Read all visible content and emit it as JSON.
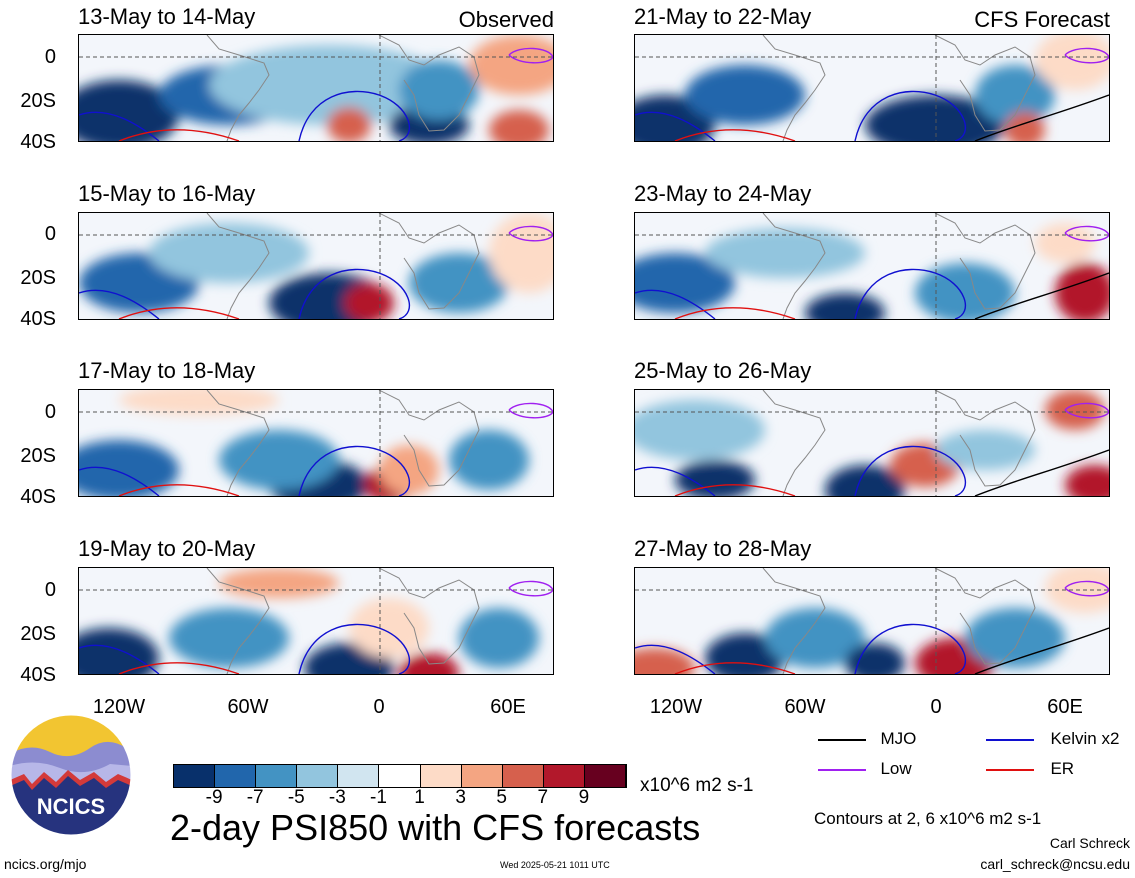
{
  "left_column_tag": "Observed",
  "right_column_tag": "CFS Forecast",
  "panels_left": [
    {
      "title": "13-May to 14-May"
    },
    {
      "title": "15-May to 16-May"
    },
    {
      "title": "17-May to 18-May"
    },
    {
      "title": "19-May to 20-May"
    }
  ],
  "panels_right": [
    {
      "title": "21-May to 22-May"
    },
    {
      "title": "23-May to 24-May"
    },
    {
      "title": "25-May to 26-May"
    },
    {
      "title": "27-May to 28-May"
    }
  ],
  "y_ticks": [
    "0",
    "20S",
    "40S"
  ],
  "x_ticks": [
    "120W",
    "60W",
    "0",
    "60E"
  ],
  "legend": {
    "mjo": "MJO",
    "kelvin": "Kelvin x2",
    "low": "Low",
    "er": "ER",
    "colors": {
      "mjo": "#000000",
      "kelvin": "#1010d0",
      "low": "#a020f0",
      "er": "#e01010"
    }
  },
  "colorbar": {
    "ticks": [
      "-9",
      "-7",
      "-5",
      "-3",
      "-1",
      "1",
      "3",
      "5",
      "7",
      "9"
    ],
    "units": "x10^6 m2 s-1",
    "colors": [
      "#08306b",
      "#2166ac",
      "#4393c3",
      "#92c5de",
      "#d1e5f0",
      "#ffffff",
      "#fddbc7",
      "#f4a582",
      "#d6604d",
      "#b2182b",
      "#67001f"
    ]
  },
  "main_title": "2-day PSI850 with CFS forecasts",
  "contours_note": "Contours at 2, 6 x10^6 m2 s-1",
  "author": "Carl Schreck",
  "email": "carl_schreck@ncsu.edu",
  "website": "ncics.org/mjo",
  "timestamp": "Wed 2025-05-21 1011 UTC",
  "logo_text": "NCICS",
  "chart_data": {
    "type": "heatmap",
    "title": "2-day PSI850 with CFS forecasts",
    "variable": "PSI850 anomaly",
    "units": "x10^6 m2 s-1",
    "x_axis_ticks": [
      "120W",
      "60W",
      "0",
      "60E"
    ],
    "y_axis_ticks": [
      "0",
      "20S",
      "40S"
    ],
    "colorbar_levels": [
      -9,
      -7,
      -5,
      -3,
      -1,
      1,
      3,
      5,
      7,
      9
    ],
    "contour_levels": [
      2,
      6
    ],
    "contour_series": [
      "MJO",
      "Kelvin x2",
      "Low",
      "ER"
    ],
    "panels": [
      {
        "period": "13-May to 14-May",
        "source": "Observed"
      },
      {
        "period": "15-May to 16-May",
        "source": "Observed"
      },
      {
        "period": "17-May to 18-May",
        "source": "Observed"
      },
      {
        "period": "19-May to 20-May",
        "source": "Observed"
      },
      {
        "period": "21-May to 22-May",
        "source": "CFS Forecast"
      },
      {
        "period": "23-May to 24-May",
        "source": "CFS Forecast"
      },
      {
        "period": "25-May to 26-May",
        "source": "CFS Forecast"
      },
      {
        "period": "27-May to 28-May",
        "source": "CFS Forecast"
      }
    ]
  }
}
